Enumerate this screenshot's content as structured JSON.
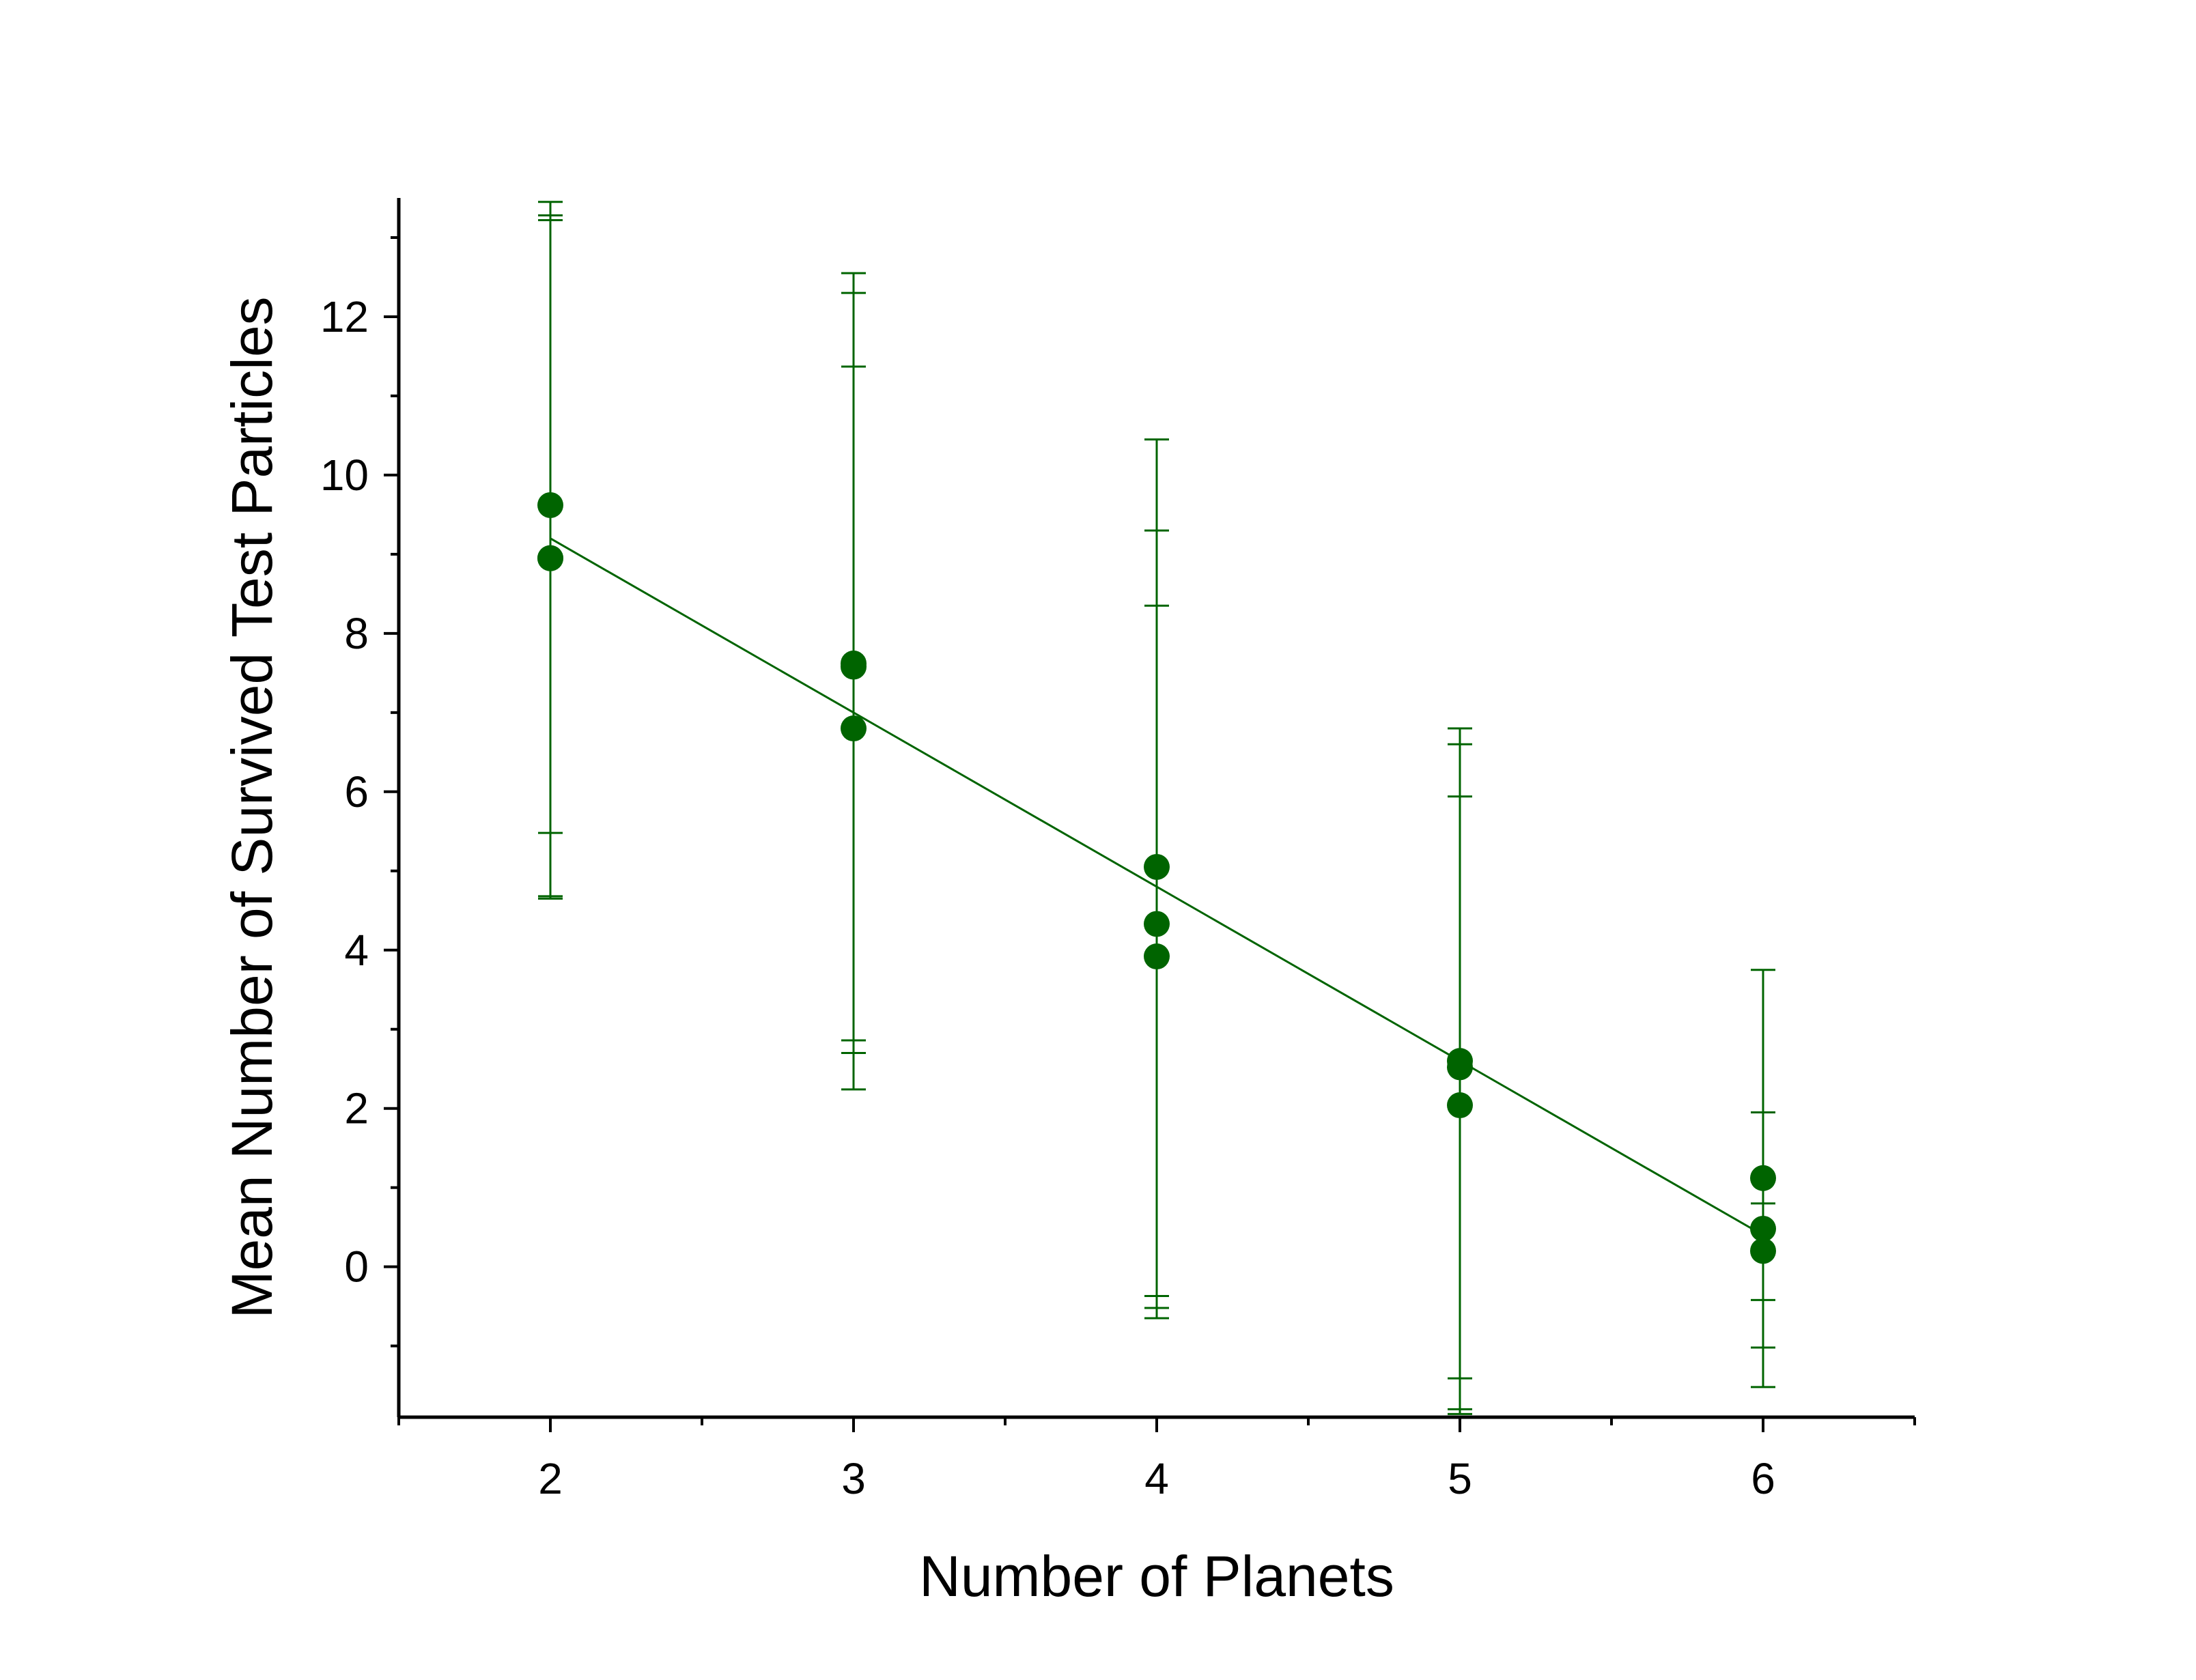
{
  "chart_data": {
    "type": "scatter",
    "xlabel": "Number of Planets",
    "ylabel": "Mean Number of Survived Test Particles",
    "xlim": [
      1.5,
      6.5
    ],
    "ylim": [
      -1.9,
      13.5
    ],
    "x_ticks": [
      "2",
      "3",
      "4",
      "5",
      "6"
    ],
    "y_ticks": [
      "0",
      "2",
      "4",
      "6",
      "8",
      "10",
      "12"
    ],
    "x_tick_values": [
      2,
      3,
      4,
      5,
      6
    ],
    "y_tick_values": [
      0,
      2,
      4,
      6,
      8,
      10,
      12
    ],
    "grid": false,
    "color": "#006400",
    "points": [
      {
        "x": 2,
        "y": 9.62,
        "err_low": 4.68,
        "err_high": 13.28
      },
      {
        "x": 2,
        "y": 8.95,
        "err_low": 4.65,
        "err_high": 13.22
      },
      {
        "x": 2,
        "y": 8.95,
        "err_low": 5.48,
        "err_high": 13.45
      },
      {
        "x": 3,
        "y": 7.62,
        "err_low": 2.86,
        "err_high": 12.3
      },
      {
        "x": 3,
        "y": 7.58,
        "err_low": 2.7,
        "err_high": 12.55
      },
      {
        "x": 3,
        "y": 6.8,
        "err_low": 2.24,
        "err_high": 11.37
      },
      {
        "x": 4,
        "y": 5.05,
        "err_low": -0.37,
        "err_high": 10.45
      },
      {
        "x": 4,
        "y": 4.33,
        "err_low": -0.52,
        "err_high": 9.3
      },
      {
        "x": 4,
        "y": 3.92,
        "err_low": -0.65,
        "err_high": 8.35
      },
      {
        "x": 5,
        "y": 2.6,
        "err_low": -1.41,
        "err_high": 6.8
      },
      {
        "x": 5,
        "y": 2.52,
        "err_low": -1.8,
        "err_high": 6.6
      },
      {
        "x": 5,
        "y": 2.04,
        "err_low": -1.86,
        "err_high": 5.94
      },
      {
        "x": 6,
        "y": 1.12,
        "err_low": -1.02,
        "err_high": 3.75
      },
      {
        "x": 6,
        "y": 0.48,
        "err_low": -0.42,
        "err_high": 1.95
      },
      {
        "x": 6,
        "y": 0.2,
        "err_low": -1.52,
        "err_high": 0.8
      }
    ],
    "fit_line": {
      "x": [
        2,
        6
      ],
      "y": [
        9.2,
        0.4
      ]
    }
  }
}
